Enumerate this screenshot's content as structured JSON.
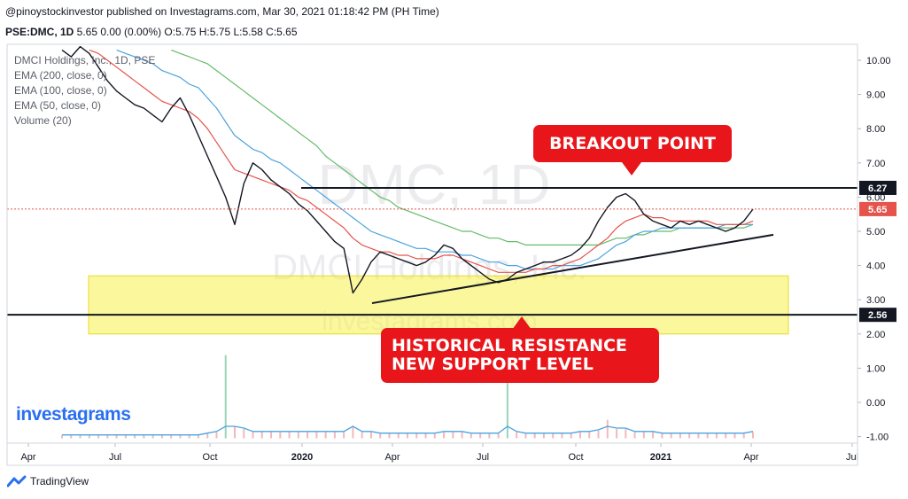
{
  "header": {
    "publisher_line": "@pinoystockinvestor published on Investagrams.com, Mar 30, 2021 01:18:42 PM (PH Time)",
    "symbol_line_bold": "PSE:DMC, 1D",
    "symbol_line_rest": " 5.65 0.00 (0.00%) O:5.75 H:5.75 L:5.58 C:5.65"
  },
  "legend": {
    "title": "DMCI Holdings, Inc., 1D, PSE",
    "ema200": "EMA (200, close, 0)",
    "ema100": "EMA (100, close, 0)",
    "ema50": "EMA (50, close, 0)",
    "volume": "Volume (20)"
  },
  "brand": "investagrams",
  "footer": {
    "label": "TradingView"
  },
  "chart_data": {
    "type": "line",
    "x_tick_labels": [
      "Apr",
      "Jul",
      "Oct",
      "2020",
      "Apr",
      "Jul",
      "Oct",
      "2021",
      "Apr",
      "Jul"
    ],
    "y_tick_labels": [
      "10.00",
      "9.00",
      "8.00",
      "7.00",
      "6.00",
      "5.00",
      "4.00",
      "3.00",
      "2.00",
      "1.00",
      "0.00",
      "-1.00"
    ],
    "ylim": [
      -1.2,
      10.3
    ],
    "price_labels": {
      "resistance": "6.27",
      "last": "5.65",
      "support": "2.56"
    },
    "annotations": {
      "breakout": "BREAKOUT POINT",
      "support_line1": "HISTORICAL RESISTANCE",
      "support_line2": "NEW SUPPORT LEVEL"
    },
    "series": [
      {
        "name": "price",
        "color": "#131722",
        "values": [
          10.3,
          10.1,
          10.4,
          10.2,
          9.8,
          9.4,
          9.1,
          8.9,
          8.7,
          8.6,
          8.4,
          8.2,
          8.6,
          8.9,
          8.4,
          7.8,
          7.2,
          6.6,
          6.0,
          5.2,
          6.4,
          7.0,
          6.8,
          6.5,
          6.3,
          6.1,
          5.8,
          5.6,
          5.3,
          5.0,
          4.7,
          4.5,
          3.2,
          3.6,
          4.1,
          4.4,
          4.3,
          4.2,
          4.1,
          4.0,
          4.1,
          4.3,
          4.6,
          4.5,
          4.2,
          4.0,
          3.8,
          3.6,
          3.5,
          3.6,
          3.8,
          3.9,
          4.0,
          4.1,
          4.1,
          4.2,
          4.3,
          4.5,
          4.8,
          5.3,
          5.7,
          6.0,
          6.1,
          5.9,
          5.5,
          5.3,
          5.2,
          5.1,
          5.3,
          5.2,
          5.3,
          5.2,
          5.1,
          5.0,
          5.1,
          5.3,
          5.65
        ]
      },
      {
        "name": "EMA 50",
        "color": "#e5534b",
        "values": [
          null,
          null,
          null,
          10.3,
          10.2,
          10.0,
          9.8,
          9.6,
          9.4,
          9.2,
          9.0,
          8.8,
          8.7,
          8.6,
          8.5,
          8.3,
          8.0,
          7.6,
          7.2,
          6.8,
          6.7,
          6.6,
          6.5,
          6.4,
          6.3,
          6.2,
          6.0,
          5.9,
          5.7,
          5.5,
          5.3,
          5.1,
          4.8,
          4.6,
          4.5,
          4.4,
          4.4,
          4.3,
          4.3,
          4.2,
          4.2,
          4.2,
          4.3,
          4.3,
          4.2,
          4.1,
          4.0,
          3.9,
          3.8,
          3.8,
          3.8,
          3.8,
          3.9,
          3.9,
          4.0,
          4.0,
          4.1,
          4.2,
          4.4,
          4.6,
          4.8,
          5.1,
          5.3,
          5.4,
          5.5,
          5.4,
          5.4,
          5.3,
          5.3,
          5.3,
          5.3,
          5.3,
          5.2,
          5.2,
          5.2,
          5.2,
          5.3
        ]
      },
      {
        "name": "EMA 100",
        "color": "#4aa3df",
        "values": [
          null,
          null,
          null,
          null,
          null,
          null,
          10.3,
          10.2,
          10.1,
          10.0,
          9.9,
          9.7,
          9.6,
          9.5,
          9.3,
          9.2,
          8.9,
          8.6,
          8.2,
          7.8,
          7.6,
          7.4,
          7.3,
          7.1,
          7.0,
          6.8,
          6.6,
          6.4,
          6.2,
          6.0,
          5.8,
          5.6,
          5.4,
          5.2,
          5.0,
          4.9,
          4.8,
          4.7,
          4.6,
          4.5,
          4.5,
          4.4,
          4.4,
          4.4,
          4.3,
          4.3,
          4.2,
          4.1,
          4.1,
          4.0,
          4.0,
          3.9,
          3.9,
          3.9,
          3.9,
          4.0,
          4.0,
          4.0,
          4.1,
          4.2,
          4.4,
          4.6,
          4.7,
          4.9,
          5.0,
          5.0,
          5.1,
          5.1,
          5.1,
          5.1,
          5.1,
          5.1,
          5.1,
          5.2,
          5.2,
          5.2,
          5.2
        ]
      },
      {
        "name": "EMA 200",
        "color": "#66bb6a",
        "values": [
          null,
          null,
          null,
          null,
          null,
          null,
          null,
          null,
          null,
          null,
          null,
          null,
          10.3,
          10.2,
          10.1,
          10.0,
          9.9,
          9.7,
          9.5,
          9.3,
          9.1,
          8.9,
          8.7,
          8.5,
          8.3,
          8.1,
          7.9,
          7.7,
          7.5,
          7.2,
          7.0,
          6.8,
          6.6,
          6.4,
          6.2,
          6.0,
          5.9,
          5.7,
          5.6,
          5.5,
          5.4,
          5.3,
          5.2,
          5.1,
          5.0,
          5.0,
          4.9,
          4.8,
          4.8,
          4.7,
          4.7,
          4.6,
          4.6,
          4.6,
          4.6,
          4.6,
          4.6,
          4.6,
          4.6,
          4.6,
          4.7,
          4.8,
          4.8,
          4.9,
          4.9,
          5.0,
          5.0,
          5.0,
          5.1,
          5.1,
          5.1,
          5.1,
          5.1,
          5.1,
          5.1,
          5.1,
          5.2
        ]
      }
    ],
    "volume": {
      "name": "Volume (20)",
      "color": "#4aa3df",
      "values": [
        0.1,
        0.1,
        0.1,
        0.1,
        0.1,
        0.1,
        0.1,
        0.1,
        0.1,
        0.1,
        0.1,
        0.1,
        0.1,
        0.1,
        0.1,
        0.1,
        0.15,
        0.2,
        2.7,
        0.4,
        0.3,
        0.2,
        0.2,
        0.2,
        0.2,
        0.2,
        0.2,
        0.2,
        0.2,
        0.2,
        0.2,
        0.2,
        0.4,
        0.2,
        0.2,
        0.15,
        0.15,
        0.15,
        0.15,
        0.15,
        0.15,
        0.15,
        0.2,
        0.2,
        0.2,
        0.15,
        0.15,
        0.15,
        0.15,
        2.2,
        0.2,
        0.15,
        0.15,
        0.15,
        0.15,
        0.15,
        0.15,
        0.2,
        0.2,
        0.25,
        0.6,
        0.3,
        0.3,
        0.2,
        0.2,
        0.2,
        0.15,
        0.15,
        0.15,
        0.15,
        0.15,
        0.15,
        0.15,
        0.15,
        0.15,
        0.15,
        0.2
      ]
    },
    "trendlines": {
      "resistance_level": 6.27,
      "support_level": 2.56,
      "rising_trend_start": 2.9,
      "rising_trend_end": 4.9
    },
    "support_zone": [
      2.0,
      3.7
    ],
    "last_price": 5.65,
    "watermark": [
      "DMC, 1D",
      "DMCI Holdings, Inc.",
      "investagrams.com"
    ]
  }
}
